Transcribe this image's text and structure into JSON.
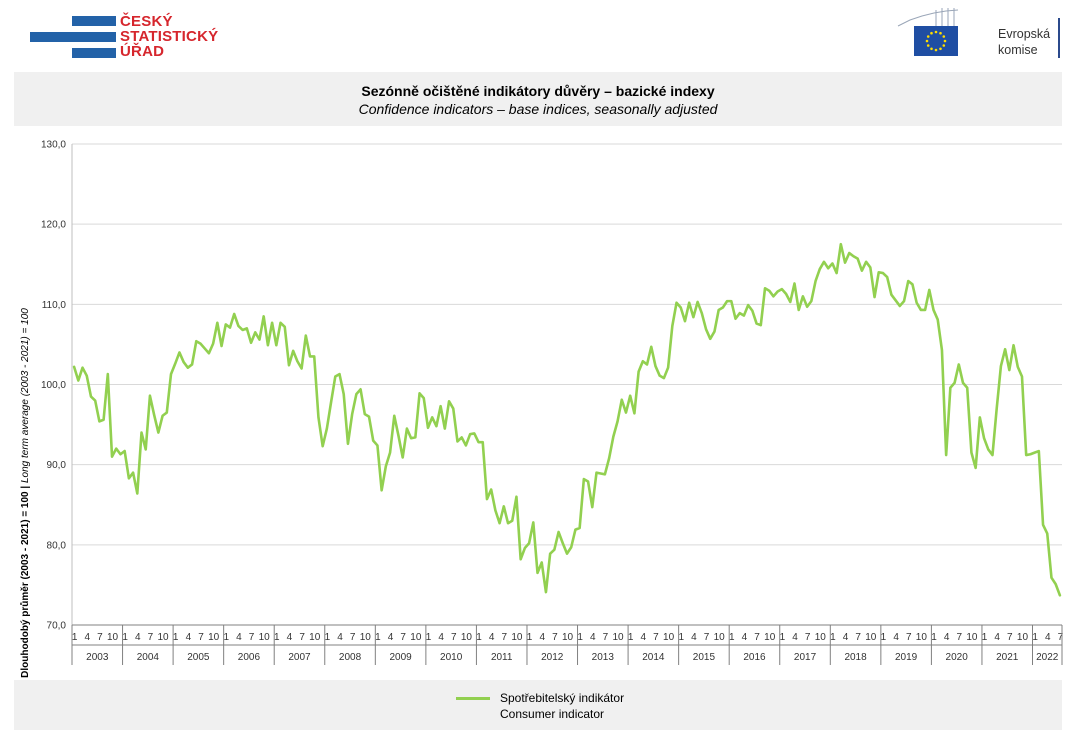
{
  "header": {
    "csu_logo_lines": [
      "ČESKÝ",
      "STATISTICKÝ",
      "ÚŘAD"
    ],
    "ec_logo_lines": [
      "Evropská",
      "komise"
    ]
  },
  "colors": {
    "series": "#92d050",
    "csu_red": "#d6262d",
    "csu_blue": "#2362a8",
    "panel_bg": "#f0f0f0"
  },
  "chart_data": {
    "type": "line",
    "title": "Sezónně očištěné indikátory důvěry – bazické indexy",
    "subtitle": "Confidence indicators – base indices, seasonally adjusted",
    "ylabel_bold": "Dlouhodobý průměr (2003 - 2021) = 100",
    "ylabel_sep": " | ",
    "ylabel_italic": "Long term average (2003 - 2021) = 100",
    "ylim": [
      70,
      130
    ],
    "yticks": [
      "70,0",
      "80,0",
      "90,0",
      "100,0",
      "110,0",
      "120,0",
      "130,0"
    ],
    "month_ticks": [
      "1",
      "4",
      "7",
      "10"
    ],
    "month_ticks_last_year": [
      "1",
      "4",
      "7"
    ],
    "years": [
      "2003",
      "2004",
      "2005",
      "2006",
      "2007",
      "2008",
      "2009",
      "2010",
      "2011",
      "2012",
      "2013",
      "2014",
      "2015",
      "2016",
      "2017",
      "2018",
      "2019",
      "2020",
      "2021",
      "2022"
    ],
    "grid": true,
    "legend_placement": "bottom",
    "series": [
      {
        "name": "Spotřebitelský indikátor",
        "name_en": "Consumer indicator",
        "start": "2003-01",
        "values": [
          102.2,
          100.5,
          102.1,
          101.1,
          98.5,
          98.0,
          95.4,
          95.6,
          101.3,
          91.0,
          92.0,
          91.3,
          91.7,
          88.3,
          89.0,
          86.4,
          94.0,
          91.9,
          98.6,
          96.2,
          94.0,
          96.1,
          96.5,
          101.3,
          102.6,
          104.0,
          102.8,
          102.1,
          102.5,
          105.4,
          105.1,
          104.5,
          103.9,
          105.1,
          107.7,
          104.8,
          107.5,
          107.1,
          108.8,
          107.3,
          106.8,
          107.0,
          105.2,
          106.5,
          105.6,
          108.5,
          104.9,
          107.7,
          104.9,
          107.7,
          107.2,
          102.4,
          104.2,
          102.9,
          102.0,
          106.1,
          103.5,
          103.5,
          95.9,
          92.3,
          94.5,
          97.8,
          101.0,
          101.3,
          98.8,
          92.6,
          96.3,
          98.8,
          99.4,
          96.3,
          96.0,
          93.0,
          92.4,
          86.8,
          89.8,
          91.5,
          96.1,
          93.6,
          90.9,
          94.5,
          93.3,
          93.4,
          98.9,
          98.3,
          94.6,
          95.9,
          94.8,
          97.3,
          94.5,
          97.9,
          97.0,
          92.9,
          93.4,
          92.4,
          93.8,
          93.9,
          92.8,
          92.8,
          85.7,
          86.9,
          84.3,
          82.7,
          84.8,
          82.7,
          83.0,
          86.0,
          78.2,
          79.6,
          80.2,
          82.8,
          76.5,
          77.8,
          74.1,
          78.9,
          79.4,
          81.6,
          80.2,
          78.9,
          79.7,
          81.9,
          82.1,
          88.2,
          87.9,
          84.7,
          89.0,
          88.9,
          88.8,
          90.8,
          93.5,
          95.4,
          98.1,
          96.5,
          98.6,
          96.4,
          101.6,
          102.9,
          102.5,
          104.7,
          102.3,
          101.1,
          100.8,
          102.1,
          107.3,
          110.2,
          109.6,
          107.9,
          110.2,
          108.4,
          110.3,
          108.9,
          106.9,
          105.7,
          106.6,
          109.3,
          109.6,
          110.4,
          110.4,
          108.2,
          108.9,
          108.6,
          109.9,
          109.2,
          107.6,
          107.4,
          112.0,
          111.7,
          111.0,
          111.6,
          111.9,
          111.3,
          110.3,
          112.6,
          109.3,
          111.0,
          109.7,
          110.4,
          112.9,
          114.4,
          115.3,
          114.5,
          115.1,
          113.9,
          117.5,
          115.2,
          116.4,
          116.0,
          115.7,
          114.2,
          115.3,
          114.6,
          110.9,
          114.0,
          113.9,
          113.4,
          111.2,
          110.5,
          109.8,
          110.4,
          112.9,
          112.5,
          110.2,
          109.3,
          109.3,
          111.8,
          109.3,
          108.1,
          104.3,
          91.2,
          99.6,
          100.2,
          102.5,
          100.2,
          99.6,
          91.5,
          89.6,
          95.9,
          93.3,
          91.9,
          91.2,
          97.0,
          102.3,
          104.4,
          101.8,
          104.9,
          102.2,
          101.0,
          91.2,
          91.3,
          91.5,
          91.7,
          82.5,
          81.4,
          75.9,
          75.1,
          73.7
        ]
      }
    ]
  }
}
